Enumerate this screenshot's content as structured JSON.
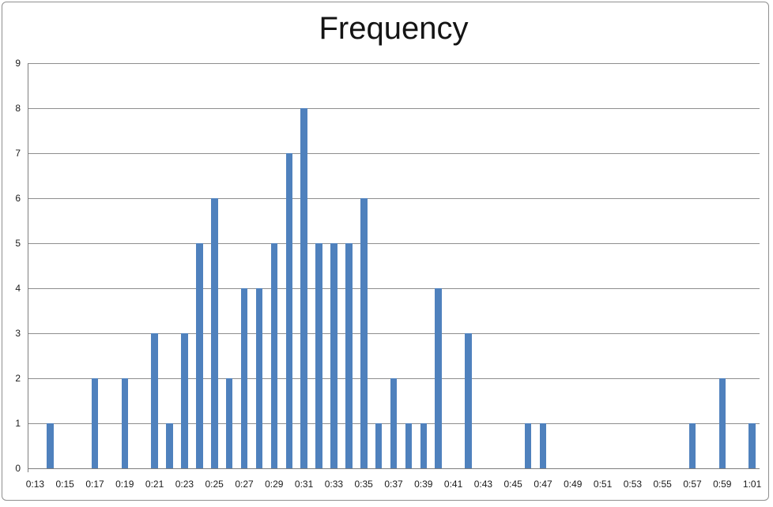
{
  "chart_data": {
    "type": "bar",
    "title": "Frequency",
    "categories": [
      "0:13",
      "0:14",
      "0:15",
      "0:16",
      "0:17",
      "0:18",
      "0:19",
      "0:20",
      "0:21",
      "0:22",
      "0:23",
      "0:24",
      "0:25",
      "0:26",
      "0:27",
      "0:28",
      "0:29",
      "0:30",
      "0:31",
      "0:32",
      "0:33",
      "0:34",
      "0:35",
      "0:36",
      "0:37",
      "0:38",
      "0:39",
      "0:40",
      "0:41",
      "0:42",
      "0:43",
      "0:44",
      "0:45",
      "0:46",
      "0:47",
      "0:48",
      "0:49",
      "0:50",
      "0:51",
      "0:52",
      "0:53",
      "0:54",
      "0:55",
      "0:56",
      "0:57",
      "0:58",
      "0:59",
      "1:00",
      "1:01"
    ],
    "values": [
      0,
      1,
      0,
      0,
      2,
      0,
      2,
      0,
      3,
      1,
      3,
      5,
      6,
      2,
      4,
      4,
      5,
      7,
      8,
      5,
      5,
      5,
      6,
      1,
      2,
      1,
      1,
      4,
      0,
      3,
      0,
      0,
      0,
      1,
      1,
      0,
      0,
      0,
      0,
      0,
      0,
      0,
      0,
      0,
      1,
      0,
      2,
      0,
      1
    ],
    "x_tick_labels": [
      "0:13",
      "0:15",
      "0:17",
      "0:19",
      "0:21",
      "0:23",
      "0:25",
      "0:27",
      "0:29",
      "0:31",
      "0:33",
      "0:35",
      "0:37",
      "0:39",
      "0:41",
      "0:43",
      "0:45",
      "0:47",
      "0:49",
      "0:51",
      "0:53",
      "0:55",
      "0:57",
      "0:59",
      "1:01"
    ],
    "x_tick_every": 2,
    "y_tick_labels": [
      "0",
      "1",
      "2",
      "3",
      "4",
      "5",
      "6",
      "7",
      "8",
      "9"
    ],
    "ylim": [
      0,
      9
    ],
    "xlabel": "",
    "ylabel": "",
    "grid": "horizontal",
    "legend": "none",
    "colors": {
      "bar": "#4F81BD",
      "gridline": "#8E8E8E",
      "axis": "#7F7F7F",
      "text": "#1A1A1A",
      "frame_border": "#8F8F8F",
      "background": "#FFFFFF"
    }
  }
}
